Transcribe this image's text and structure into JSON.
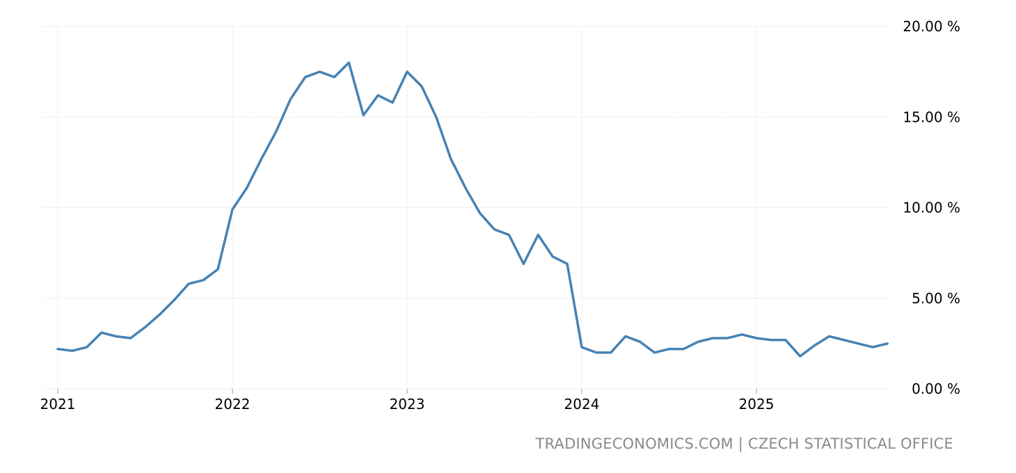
{
  "source": {
    "site": "TRADINGECONOMICS.COM",
    "separator": "|",
    "org": "CZECH STATISTICAL OFFICE"
  },
  "colors": {
    "line": "#4682b4",
    "grid": "#d3d3d3",
    "source_text": "#8a8a8a"
  },
  "chart_data": {
    "type": "line",
    "title": "",
    "xlabel": "",
    "ylabel": "",
    "ylim": [
      0,
      20
    ],
    "yticks": [
      0,
      5,
      10,
      15,
      20
    ],
    "ytick_labels": [
      "0.00 %",
      "5.00 %",
      "10.00 %",
      "15.00 %",
      "20.00 %"
    ],
    "xticks": [
      "2021",
      "2022",
      "2023",
      "2024",
      "2025"
    ],
    "grid": true,
    "y_axis_position": "right",
    "x_start": "2021-01",
    "x_end": "2025-10",
    "x": [
      "2021-01",
      "2021-02",
      "2021-03",
      "2021-04",
      "2021-05",
      "2021-06",
      "2021-07",
      "2021-08",
      "2021-09",
      "2021-10",
      "2021-11",
      "2021-12",
      "2022-01",
      "2022-02",
      "2022-03",
      "2022-04",
      "2022-05",
      "2022-06",
      "2022-07",
      "2022-08",
      "2022-09",
      "2022-10",
      "2022-11",
      "2022-12",
      "2023-01",
      "2023-02",
      "2023-03",
      "2023-04",
      "2023-05",
      "2023-06",
      "2023-07",
      "2023-08",
      "2023-09",
      "2023-10",
      "2023-11",
      "2023-12",
      "2024-01",
      "2024-02",
      "2024-03",
      "2024-04",
      "2024-05",
      "2024-06",
      "2024-07",
      "2024-08",
      "2024-09",
      "2024-10",
      "2024-11",
      "2024-12",
      "2025-01",
      "2025-02",
      "2025-03",
      "2025-04",
      "2025-05",
      "2025-06",
      "2025-07",
      "2025-08",
      "2025-09",
      "2025-10"
    ],
    "series": [
      {
        "values": [
          2.2,
          2.1,
          2.3,
          3.1,
          2.9,
          2.8,
          3.4,
          4.1,
          4.9,
          5.8,
          6.0,
          6.6,
          9.9,
          11.1,
          12.7,
          14.2,
          16.0,
          17.2,
          17.5,
          17.2,
          18.0,
          15.1,
          16.2,
          15.8,
          17.5,
          16.7,
          15.0,
          12.7,
          11.1,
          9.7,
          8.8,
          8.5,
          6.9,
          8.5,
          7.3,
          6.9,
          2.3,
          2.0,
          2.0,
          2.9,
          2.6,
          2.0,
          2.2,
          2.2,
          2.6,
          2.8,
          2.8,
          3.0,
          2.8,
          2.7,
          2.7,
          1.8,
          2.4,
          2.9,
          2.7,
          2.5,
          2.3,
          2.5
        ]
      }
    ]
  }
}
